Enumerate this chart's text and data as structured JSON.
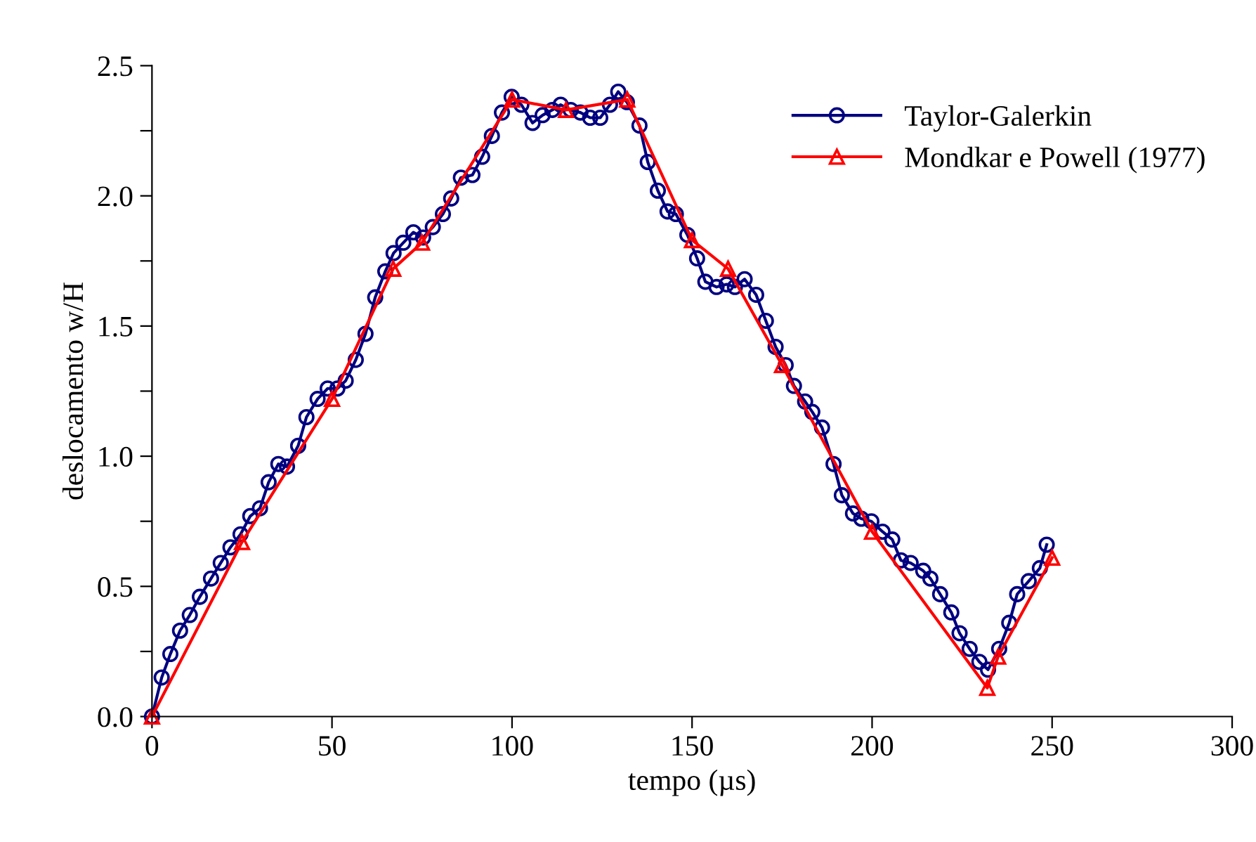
{
  "chart_data": {
    "type": "line",
    "xlabel": "tempo (µs)",
    "ylabel": "deslocamento w/H",
    "xlim": [
      0,
      300
    ],
    "xticks": [
      0,
      50,
      100,
      150,
      200,
      250,
      300
    ],
    "ylim": [
      0,
      2.5
    ],
    "yticks": [
      {
        "value": 0,
        "label": "0.0"
      },
      {
        "value": 0.25,
        "label": null
      },
      {
        "value": 0.5,
        "label": "0.5"
      },
      {
        "value": 0.75,
        "label": null
      },
      {
        "value": 1,
        "label": "1.0"
      },
      {
        "value": 1.25,
        "label": null
      },
      {
        "value": 1.5,
        "label": "1.5"
      },
      {
        "value": 1.75,
        "label": null
      },
      {
        "value": 2,
        "label": "2.0"
      },
      {
        "value": 2.25,
        "label": null
      },
      {
        "value": 2.5,
        "label": "2.5"
      }
    ],
    "grid": false,
    "legend": "top right",
    "line_style": "solid",
    "series": [
      {
        "name": "Taylor-Galerkin",
        "color": "#000080",
        "marker": "circle",
        "x": [
          0,
          2.7,
          5.1,
          7.8,
          10.5,
          13.3,
          16.4,
          19.1,
          21.8,
          24.6,
          27.3,
          30,
          32.4,
          35.1,
          37.5,
          40.6,
          42.9,
          46,
          48.8,
          51.5,
          53.8,
          56.6,
          59.3,
          62,
          64.8,
          67.1,
          69.8,
          72.6,
          75.3,
          78,
          80.8,
          83.1,
          85.8,
          89,
          91.7,
          94.4,
          97.2,
          99.9,
          102.6,
          105.7,
          108.5,
          111.2,
          113.5,
          116.3,
          119,
          121.7,
          124.5,
          127.2,
          129.5,
          131.9,
          135.4,
          137.7,
          140.5,
          143.2,
          145.5,
          148.7,
          151.4,
          153.7,
          156.8,
          159.6,
          161.9,
          164.6,
          167.8,
          170.5,
          173.2,
          176,
          178.3,
          181.4,
          183.4,
          186.1,
          189.3,
          191.6,
          194.7,
          197,
          199.8,
          202.9,
          205.6,
          208,
          210.7,
          214.2,
          216.2,
          218.9,
          222,
          224.3,
          227.1,
          229.8,
          232.2,
          235.3,
          238.1,
          240.3,
          243.5,
          246.6,
          248.5
        ],
        "values": [
          0,
          0.15,
          0.24,
          0.33,
          0.39,
          0.46,
          0.53,
          0.59,
          0.65,
          0.7,
          0.77,
          0.8,
          0.9,
          0.97,
          0.96,
          1.04,
          1.15,
          1.22,
          1.26,
          1.26,
          1.29,
          1.37,
          1.47,
          1.61,
          1.71,
          1.78,
          1.82,
          1.86,
          1.84,
          1.88,
          1.93,
          1.99,
          2.07,
          2.08,
          2.15,
          2.23,
          2.32,
          2.38,
          2.35,
          2.28,
          2.31,
          2.33,
          2.35,
          2.33,
          2.32,
          2.3,
          2.3,
          2.35,
          2.4,
          2.36,
          2.27,
          2.13,
          2.02,
          1.94,
          1.93,
          1.85,
          1.76,
          1.67,
          1.65,
          1.66,
          1.65,
          1.68,
          1.62,
          1.52,
          1.42,
          1.35,
          1.27,
          1.21,
          1.17,
          1.11,
          0.97,
          0.85,
          0.78,
          0.76,
          0.75,
          0.71,
          0.68,
          0.6,
          0.59,
          0.56,
          0.53,
          0.47,
          0.4,
          0.32,
          0.26,
          0.21,
          0.18,
          0.26,
          0.36,
          0.47,
          0.52,
          0.57,
          0.66
        ]
      },
      {
        "name": "Mondkar e Powell (1977)",
        "color": "#ff0000",
        "marker": "triangle",
        "x": [
          0,
          25,
          50,
          67,
          75,
          100,
          115,
          132,
          150,
          160,
          175,
          200,
          232,
          235,
          250
        ],
        "values": [
          0,
          0.67,
          1.22,
          1.72,
          1.82,
          2.37,
          2.33,
          2.37,
          1.83,
          1.72,
          1.35,
          0.71,
          0.11,
          0.23,
          0.61
        ]
      }
    ]
  }
}
